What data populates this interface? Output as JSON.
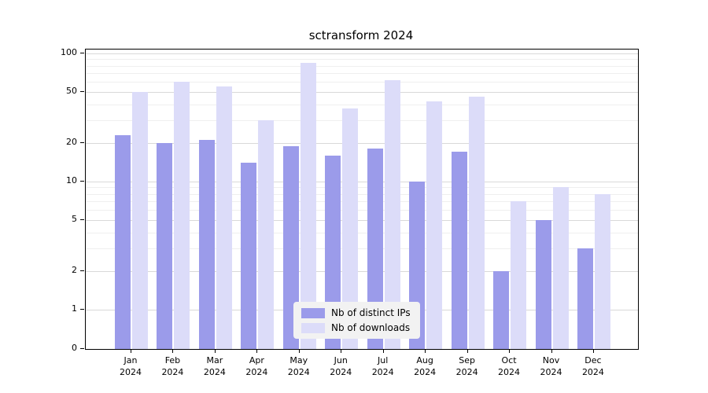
{
  "chart_data": {
    "type": "bar",
    "title": "sctransform 2024",
    "months": [
      "Jan",
      "Feb",
      "Mar",
      "Apr",
      "May",
      "Jun",
      "Jul",
      "Aug",
      "Sep",
      "Oct",
      "Nov",
      "Dec"
    ],
    "year": "2024",
    "categories": [
      "Jan 2024",
      "Feb 2024",
      "Mar 2024",
      "Apr 2024",
      "May 2024",
      "Jun 2024",
      "Jul 2024",
      "Aug 2024",
      "Sep 2024",
      "Oct 2024",
      "Nov 2024",
      "Dec 2024"
    ],
    "series": [
      {
        "name": "Nb of distinct IPs",
        "color": "#9b9bea",
        "values": [
          23,
          20,
          21,
          14,
          19,
          16,
          18,
          10,
          17,
          2,
          5,
          3
        ]
      },
      {
        "name": "Nb of downloads",
        "color": "#dcdcf9",
        "values": [
          50,
          60,
          55,
          30,
          85,
          37,
          62,
          42,
          46,
          7,
          9,
          8
        ]
      }
    ],
    "y_axis": {
      "scale": "log-above-one-with-zero-baseline",
      "ticks": [
        0,
        1,
        2,
        5,
        10,
        20,
        50,
        100
      ],
      "minor_gridlines": [
        3,
        4,
        6,
        7,
        8,
        9,
        30,
        40,
        60,
        70,
        80,
        90
      ],
      "ylim": [
        0,
        100
      ]
    },
    "xlabel": "",
    "ylabel": "",
    "grid": "horizontal",
    "legend_position": "inside-bottom-center",
    "background_color": "#ffffff"
  }
}
